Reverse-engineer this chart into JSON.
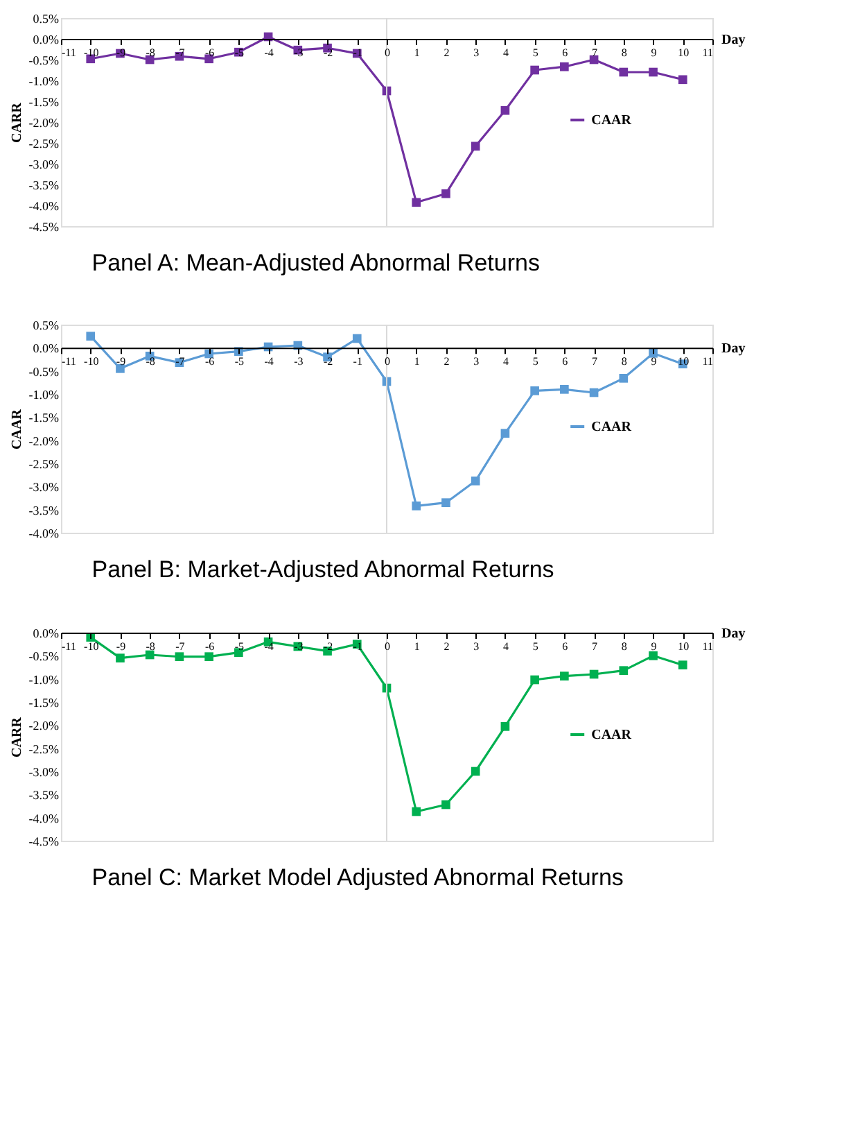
{
  "chart_data": [
    {
      "type": "line",
      "title": "Panel A: Mean-Adjusted Abnormal Returns",
      "xlabel": "Day",
      "ylabel": "CARR",
      "x": [
        -10,
        -9,
        -8,
        -7,
        -6,
        -5,
        -4,
        -3,
        -2,
        -1,
        0,
        1,
        2,
        3,
        4,
        5,
        6,
        7,
        8,
        9,
        10
      ],
      "series": [
        {
          "name": "CAAR",
          "color": "#7030a0",
          "values": [
            -0.48,
            -0.35,
            -0.5,
            -0.42,
            -0.48,
            -0.32,
            0.05,
            -0.27,
            -0.22,
            -0.35,
            -1.25,
            -3.93,
            -3.72,
            -2.58,
            -1.72,
            -0.75,
            -0.67,
            -0.5,
            -0.8,
            -0.8,
            -0.98
          ]
        }
      ],
      "xlim": [
        -11,
        11
      ],
      "xticks": [
        -11,
        -10,
        -9,
        -8,
        -7,
        -6,
        -5,
        -4,
        -3,
        -2,
        -1,
        0,
        1,
        2,
        3,
        4,
        5,
        6,
        7,
        8,
        9,
        10,
        11
      ],
      "ylim": [
        -4.5,
        0.5
      ],
      "yticks": [
        {
          "value": 0.5,
          "label": "0.5%"
        },
        {
          "value": 0,
          "label": "0.0%"
        },
        {
          "value": -0.5,
          "label": "-0.5%"
        },
        {
          "value": -1,
          "label": "-1.0%"
        },
        {
          "value": -1.5,
          "label": "-1.5%"
        },
        {
          "value": -2,
          "label": "-2.0%"
        },
        {
          "value": -2.5,
          "label": "-2.5%"
        },
        {
          "value": -3,
          "label": "-3.0%"
        },
        {
          "value": -3.5,
          "label": "-3.5%"
        },
        {
          "value": -4,
          "label": "-4.0%"
        },
        {
          "value": -4.5,
          "label": "-4.5%"
        }
      ],
      "ref_lines": [
        {
          "axis": "x",
          "value": 0,
          "color": "#d9d9d9"
        }
      ],
      "marker": "square",
      "legend": "right",
      "grid": false
    },
    {
      "type": "line",
      "title": "Panel B: Market-Adjusted Abnormal Returns",
      "xlabel": "Day",
      "ylabel": "CAAR",
      "x": [
        -10,
        -9,
        -8,
        -7,
        -6,
        -5,
        -4,
        -3,
        -2,
        -1,
        0,
        1,
        2,
        3,
        4,
        5,
        6,
        7,
        8,
        9,
        10
      ],
      "series": [
        {
          "name": "CAAR",
          "color": "#5b9bd5",
          "values": [
            0.25,
            -0.45,
            -0.18,
            -0.32,
            -0.13,
            -0.08,
            0.02,
            0.05,
            -0.2,
            0.2,
            -0.73,
            -3.42,
            -3.35,
            -2.88,
            -1.85,
            -0.93,
            -0.9,
            -0.97,
            -0.66,
            -0.12,
            -0.35
          ]
        }
      ],
      "xlim": [
        -11,
        11
      ],
      "xticks": [
        -11,
        -10,
        -9,
        -8,
        -7,
        -6,
        -5,
        -4,
        -3,
        -2,
        -1,
        0,
        1,
        2,
        3,
        4,
        5,
        6,
        7,
        8,
        9,
        10,
        11
      ],
      "ylim": [
        -4,
        0.5
      ],
      "yticks": [
        {
          "value": 0.5,
          "label": "0.5%"
        },
        {
          "value": 0,
          "label": "0.0%"
        },
        {
          "value": -0.5,
          "label": "-0.5%"
        },
        {
          "value": -1,
          "label": "-1.0%"
        },
        {
          "value": -1.5,
          "label": "-1.5%"
        },
        {
          "value": -2,
          "label": "-2.0%"
        },
        {
          "value": -2.5,
          "label": "-2.5%"
        },
        {
          "value": -3,
          "label": "-3.0%"
        },
        {
          "value": -3.5,
          "label": "-3.5%"
        },
        {
          "value": -4,
          "label": "-4.0%"
        }
      ],
      "ref_lines": [
        {
          "axis": "x",
          "value": 0,
          "color": "#d9d9d9"
        }
      ],
      "marker": "square",
      "legend": "right",
      "grid": false
    },
    {
      "type": "line",
      "title": "Panel C: Market Model Adjusted Abnormal Returns",
      "xlabel": "Day",
      "ylabel": "CARR",
      "x": [
        -10,
        -9,
        -8,
        -7,
        -6,
        -5,
        -4,
        -3,
        -2,
        -1,
        0,
        1,
        2,
        3,
        4,
        5,
        6,
        7,
        8,
        9,
        10
      ],
      "series": [
        {
          "name": "CAAR",
          "color": "#00b050",
          "values": [
            -0.1,
            -0.55,
            -0.48,
            -0.52,
            -0.52,
            -0.43,
            -0.2,
            -0.3,
            -0.4,
            -0.25,
            -1.2,
            -3.87,
            -3.72,
            -3.0,
            -2.03,
            -1.02,
            -0.94,
            -0.9,
            -0.82,
            -0.5,
            -0.7
          ]
        }
      ],
      "xlim": [
        -11,
        11
      ],
      "xticks": [
        -11,
        -10,
        -9,
        -8,
        -7,
        -6,
        -5,
        -4,
        -3,
        -2,
        -1,
        0,
        1,
        2,
        3,
        4,
        5,
        6,
        7,
        8,
        9,
        10,
        11
      ],
      "ylim": [
        -4.5,
        0
      ],
      "yticks": [
        {
          "value": 0,
          "label": "0.0%"
        },
        {
          "value": -0.5,
          "label": "-0.5%"
        },
        {
          "value": -1,
          "label": "-1.0%"
        },
        {
          "value": -1.5,
          "label": "-1.5%"
        },
        {
          "value": -2,
          "label": "-2.0%"
        },
        {
          "value": -2.5,
          "label": "-2.5%"
        },
        {
          "value": -3,
          "label": "-3.0%"
        },
        {
          "value": -3.5,
          "label": "-3.5%"
        },
        {
          "value": -4,
          "label": "-4.0%"
        },
        {
          "value": -4.5,
          "label": "-4.5%"
        }
      ],
      "ref_lines": [
        {
          "axis": "x",
          "value": 0,
          "color": "#d9d9d9"
        }
      ],
      "marker": "square",
      "legend": "right",
      "grid": false
    }
  ]
}
